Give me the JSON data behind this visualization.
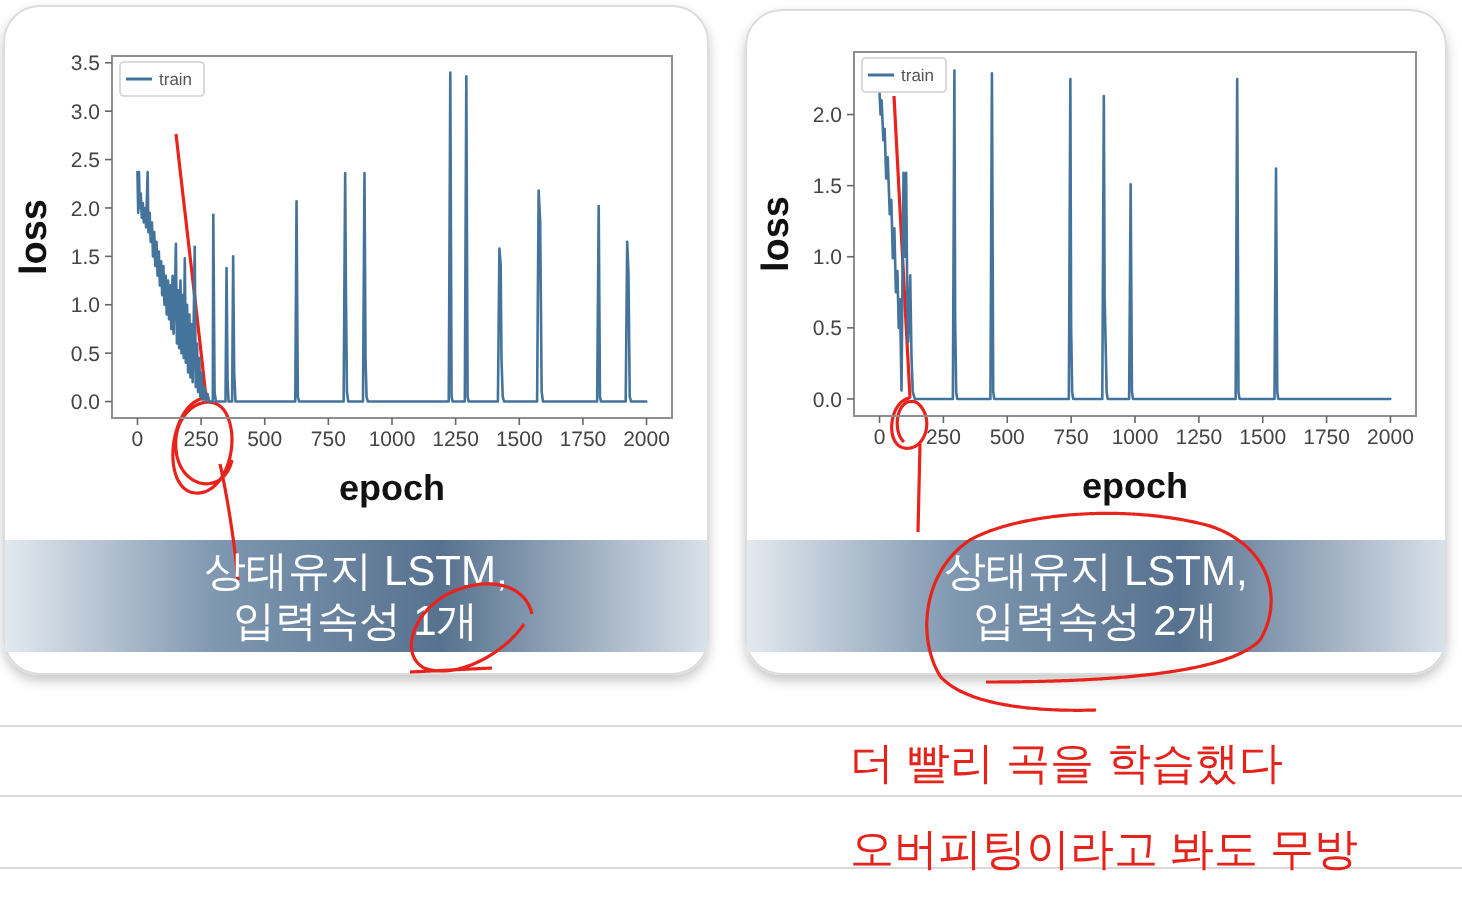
{
  "chart_data": [
    {
      "type": "line",
      "xlabel": "epoch",
      "ylabel": "loss",
      "xlim": [
        -100,
        2100
      ],
      "ylim": [
        -0.17,
        3.57
      ],
      "xticks": [
        0,
        250,
        500,
        750,
        1000,
        1250,
        1500,
        1750,
        2000
      ],
      "yticks": [
        {
          "value": 0,
          "label": "0.0"
        },
        0.5,
        {
          "value": 1,
          "label": "1.0"
        },
        1.5,
        {
          "value": 2,
          "label": "2.0"
        },
        2.5,
        {
          "value": 3,
          "label": "3.0"
        },
        3.5
      ],
      "legend": "top left",
      "series": [
        {
          "name": "train",
          "color": "#44739b",
          "x": [
            0,
            3,
            6,
            9,
            13,
            17,
            21,
            25,
            30,
            34,
            40,
            43,
            48,
            52,
            57,
            61,
            66,
            70,
            75,
            79,
            84,
            88,
            93,
            97,
            102,
            106,
            111,
            115,
            120,
            124,
            129,
            133,
            138,
            142,
            147,
            151,
            155,
            160,
            164,
            169,
            173,
            178,
            182,
            186,
            190,
            195,
            199,
            204,
            208,
            213,
            217,
            222,
            225,
            229,
            234,
            238,
            243,
            247,
            252,
            257,
            262,
            268,
            275,
            282,
            296,
            298,
            303,
            308,
            346,
            350,
            354,
            358,
            372,
            376,
            380,
            385,
            620,
            625,
            630,
            635,
            810,
            816,
            819,
            823,
            828,
            886,
            892,
            896,
            900,
            905,
            1223,
            1229,
            1234,
            1238,
            1286,
            1292,
            1297,
            1301,
            1416,
            1422,
            1427,
            1430,
            1435,
            1440,
            1570,
            1576,
            1582,
            1588,
            1593,
            1806,
            1812,
            1817,
            1821,
            1918,
            1924,
            1929,
            1934,
            1939,
            1999
          ],
          "values": [
            2.37,
            1.95,
            2.37,
            2.0,
            2.15,
            1.9,
            2.05,
            1.85,
            2.0,
            1.8,
            2.37,
            1.75,
            1.95,
            1.65,
            1.85,
            1.5,
            1.75,
            1.4,
            1.65,
            1.3,
            1.55,
            1.2,
            1.45,
            1.1,
            1.4,
            1.0,
            1.3,
            0.9,
            1.25,
            0.85,
            1.2,
            0.75,
            1.3,
            0.7,
            1.1,
            1.63,
            0.6,
            1.15,
            0.55,
            1.25,
            0.5,
            1.1,
            0.45,
            1.48,
            0.4,
            1.0,
            0.3,
            0.9,
            0.25,
            0.8,
            0.2,
            1.0,
            1.6,
            0.15,
            0.6,
            0.1,
            0.45,
            0.05,
            0.3,
            0.02,
            0.15,
            0,
            0.08,
            0,
            0,
            1.93,
            0.1,
            0,
            0,
            1.38,
            0.2,
            0,
            0,
            1.5,
            0.3,
            0,
            0,
            2.07,
            0.05,
            0,
            0,
            2.36,
            1.15,
            0.1,
            0,
            0,
            2.36,
            0.45,
            0.05,
            0,
            0,
            3.4,
            0.05,
            0,
            0,
            3.36,
            0.05,
            0,
            0,
            1.58,
            1.41,
            0.45,
            0.05,
            0,
            0,
            2.18,
            1.86,
            0.1,
            0,
            0,
            2.02,
            0.05,
            0,
            0,
            1.65,
            1.31,
            0.05,
            0,
            0
          ]
        }
      ],
      "annotations": [
        "상태유지 LSTM, 입력속성 1개"
      ]
    },
    {
      "type": "line",
      "xlabel": "epoch",
      "ylabel": "loss",
      "xlim": [
        -100,
        2100
      ],
      "ylim": [
        -0.12,
        2.44
      ],
      "xticks": [
        0,
        250,
        500,
        750,
        1000,
        1250,
        1500,
        1750,
        2000
      ],
      "yticks": [
        {
          "value": 0,
          "label": "0.0"
        },
        0.5,
        {
          "value": 1,
          "label": "1.0"
        },
        1.5,
        {
          "value": 2,
          "label": "2.0"
        }
      ],
      "legend": "top left",
      "series": [
        {
          "name": "train",
          "color": "#44739b",
          "x": [
            0,
            4,
            8,
            15,
            20,
            26,
            32,
            40,
            46,
            52,
            58,
            64,
            70,
            75,
            80,
            86,
            90,
            94,
            98,
            104,
            108,
            112,
            116,
            120,
            125,
            130,
            138,
            287,
            293,
            296,
            300,
            304,
            434,
            440,
            445,
            449,
            741,
            747,
            750,
            754,
            758,
            872,
            878,
            881,
            885,
            889,
            893,
            977,
            983,
            988,
            992,
            1394,
            1400,
            1405,
            1409,
            1546,
            1552,
            1557,
            1561,
            1999
          ],
          "values": [
            2.15,
            2.0,
            2.1,
            1.82,
            1.9,
            1.55,
            1.7,
            1.3,
            1.4,
            0.99,
            1.2,
            0.75,
            0.9,
            0.5,
            0.7,
            0.06,
            0.9,
            1.59,
            1.0,
            1.59,
            0.8,
            0.4,
            0.6,
            0.87,
            0.3,
            0.05,
            0,
            0,
            2.31,
            0.55,
            0.05,
            0,
            0,
            2.29,
            0.05,
            0,
            0,
            2.25,
            0.5,
            0.05,
            0,
            0,
            2.13,
            0.73,
            0.39,
            0.05,
            0,
            0,
            1.51,
            0.05,
            0,
            0,
            2.25,
            0.05,
            0,
            0,
            1.62,
            0.05,
            0,
            0
          ]
        }
      ],
      "annotations": [
        "상태유지 LSTM, 입력속성 2개",
        "더 빨리 곡을 학습했다",
        "오버피팅이라고 봐도 무방"
      ]
    }
  ]
}
